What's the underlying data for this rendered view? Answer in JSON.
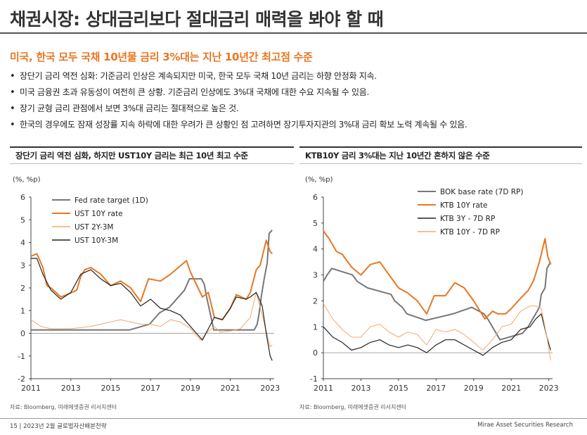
{
  "header": {
    "title": "채권시장: 상대금리보다 절대금리 매력을 봐야 할 때",
    "subtitle": "미국, 한국 모두 국채 10년물 금리 3%대는 지난 10년간 최고점 수준"
  },
  "bullets": [
    "장단기 금리 역전 심화: 기준금리 인상은 계속되지만 미국, 한국 모두 국채 10년 금리는 하향 안정화 지속.",
    "미국 금융권 초과 유동성이 여전히 큰 상황. 기준금리 인상에도 3%대 국채에 대한 수요 지속될 수 있음.",
    "장기 균형 금리 관점에서 보면 3%대 금리는 절대적으로 높은 것.",
    "한국의 경우에도 잠재 성장률 지속 하락에 대한 우려가 큰 상황인 점 고려하면 장기투자지관의 3%대 금리 확보 노력 계속될 수 있음."
  ],
  "colors": {
    "accent": "#e87722",
    "light_orange": "#f4a86a",
    "dark": "#222222",
    "gray": "#777777"
  },
  "chart_data": [
    {
      "type": "line",
      "title": "장단기 금리 역전 심화, 하지만 UST10Y 금리는 최근 10년 최고 수준",
      "ylabel": "(%, %p)",
      "ylim": [
        -2,
        6
      ],
      "yticks": [
        6,
        5,
        4,
        3,
        2,
        1,
        0,
        -1,
        -2
      ],
      "xlim": [
        2011,
        2023.2
      ],
      "xticks": [
        2011,
        2013,
        2015,
        2017,
        2019,
        2021,
        2023
      ],
      "legend_position": "top-left",
      "source": "자료: Bloomberg, 미래에셋증권 리서치센터",
      "series": [
        {
          "name": "Fed rate target (1D)",
          "color": "#777777",
          "width": 2,
          "x": [
            2011,
            2015.95,
            2016.95,
            2017.2,
            2017.45,
            2017.95,
            2018.2,
            2018.45,
            2018.7,
            2018.95,
            2019.55,
            2019.7,
            2019.8,
            2020.17,
            2022.2,
            2022.35,
            2022.45,
            2022.55,
            2022.7,
            2022.85,
            2022.95,
            2023.1
          ],
          "y": [
            0.15,
            0.15,
            0.4,
            0.65,
            0.9,
            1.15,
            1.4,
            1.65,
            1.9,
            2.4,
            2.4,
            2.15,
            1.65,
            0.15,
            0.15,
            0.4,
            0.9,
            1.6,
            2.4,
            3.1,
            4.4,
            4.55
          ]
        },
        {
          "name": "UST 10Y rate",
          "color": "#e87722",
          "width": 2,
          "x": [
            2011,
            2011.3,
            2011.6,
            2011.8,
            2012,
            2012.5,
            2012.8,
            2013.3,
            2013.5,
            2013.7,
            2014,
            2014.5,
            2015,
            2015.5,
            2016,
            2016.5,
            2016.9,
            2017.5,
            2018,
            2018.8,
            2019,
            2019.6,
            2019.9,
            2020.2,
            2020.6,
            2021,
            2021.3,
            2021.8,
            2022,
            2022.3,
            2022.5,
            2022.8,
            2023,
            2023.1
          ],
          "y": [
            3.4,
            3.5,
            2.9,
            2.1,
            2.0,
            1.6,
            1.7,
            1.9,
            2.5,
            2.8,
            2.9,
            2.6,
            2.1,
            2.3,
            2.0,
            1.4,
            2.4,
            2.3,
            2.6,
            3.2,
            2.7,
            1.6,
            1.8,
            0.7,
            0.6,
            1.1,
            1.7,
            1.5,
            1.8,
            2.8,
            3.0,
            4.1,
            3.6,
            3.5
          ]
        },
        {
          "name": "UST 2Y-3M",
          "color": "#f4a86a",
          "width": 1,
          "x": [
            2011,
            2011.5,
            2012,
            2013,
            2014,
            2015,
            2015.5,
            2016,
            2016.5,
            2017,
            2017.5,
            2018,
            2018.5,
            2019,
            2019.5,
            2019.8,
            2020.2,
            2020.5,
            2021,
            2021.5,
            2022,
            2022.3,
            2022.6,
            2022.8,
            2023,
            2023.1
          ],
          "y": [
            0.6,
            0.3,
            0.2,
            0.2,
            0.3,
            0.5,
            0.6,
            0.5,
            0.4,
            0.4,
            0.3,
            0.6,
            0.5,
            0.2,
            -0.3,
            0.0,
            0.3,
            0.05,
            0.1,
            0.2,
            0.7,
            1.8,
            0.8,
            0.1,
            -0.6,
            -0.5
          ]
        },
        {
          "name": "UST 10Y-3M",
          "color": "#222222",
          "width": 1.2,
          "x": [
            2011,
            2011.3,
            2011.6,
            2012,
            2012.5,
            2013,
            2013.5,
            2014,
            2014.5,
            2015,
            2015.5,
            2016,
            2016.5,
            2017,
            2017.5,
            2018,
            2018.5,
            2019,
            2019.3,
            2019.6,
            2019.9,
            2020.2,
            2020.6,
            2021,
            2021.3,
            2021.8,
            2022,
            2022.3,
            2022.6,
            2022.8,
            2023,
            2023.1
          ],
          "y": [
            3.3,
            3.3,
            2.6,
            1.9,
            1.5,
            1.8,
            2.6,
            2.8,
            2.4,
            2.1,
            2.2,
            1.8,
            1.2,
            1.5,
            1.1,
            1.0,
            0.8,
            0.3,
            0.0,
            -0.3,
            0.2,
            0.7,
            0.6,
            1.1,
            1.6,
            1.5,
            1.6,
            1.8,
            1.2,
            0.0,
            -1.0,
            -1.2
          ]
        }
      ]
    },
    {
      "type": "line",
      "title": "KTB10Y 금리 3%대는 지난 10년간 흔하지 않은 수준",
      "ylabel": "(%, %p)",
      "ylim": [
        -1,
        6
      ],
      "yticks": [
        6,
        5,
        4,
        3,
        2,
        1,
        0,
        -1
      ],
      "xlim": [
        2011,
        2023.2
      ],
      "xticks": [
        2011,
        2013,
        2015,
        2017,
        2019,
        2021,
        2023
      ],
      "legend_position": "top-right",
      "source": "자료: Bloomberg, 미래에셋증권 리서치센터",
      "series": [
        {
          "name": "BOK base rate (7D RP)",
          "color": "#777777",
          "width": 2,
          "x": [
            2011,
            2011.2,
            2011.45,
            2012.55,
            2012.8,
            2013.35,
            2014.6,
            2014.8,
            2015.2,
            2015.45,
            2016.45,
            2017.9,
            2018.9,
            2019.55,
            2019.8,
            2020.2,
            2020.4,
            2021.6,
            2021.9,
            2022.1,
            2022.3,
            2022.5,
            2022.6,
            2022.8,
            2022.9,
            2023.1
          ],
          "y": [
            2.75,
            3.0,
            3.25,
            3.0,
            2.75,
            2.5,
            2.25,
            2.0,
            1.75,
            1.5,
            1.25,
            1.5,
            1.75,
            1.5,
            1.25,
            0.75,
            0.5,
            0.75,
            1.0,
            1.25,
            1.5,
            1.75,
            2.25,
            2.5,
            3.25,
            3.5
          ]
        },
        {
          "name": "KTB 10Y rate",
          "color": "#e87722",
          "width": 2,
          "x": [
            2011,
            2011.3,
            2011.7,
            2012,
            2012.5,
            2013,
            2013.5,
            2014,
            2014.5,
            2015,
            2015.5,
            2016,
            2016.5,
            2016.9,
            2017.5,
            2018,
            2018.5,
            2019,
            2019.6,
            2020,
            2020.3,
            2020.7,
            2021,
            2021.5,
            2021.9,
            2022.2,
            2022.5,
            2022.8,
            2022.95,
            2023.1
          ],
          "y": [
            4.7,
            4.4,
            3.9,
            3.8,
            3.3,
            3.0,
            3.4,
            3.5,
            3.0,
            2.5,
            2.3,
            2.0,
            1.5,
            2.2,
            2.2,
            2.7,
            2.5,
            2.0,
            1.3,
            1.6,
            1.5,
            1.5,
            1.7,
            2.1,
            2.4,
            2.8,
            3.5,
            4.4,
            3.7,
            3.4
          ]
        },
        {
          "name": "KTB 3Y - 7D RP",
          "color": "#222222",
          "width": 1.2,
          "x": [
            2011,
            2011.5,
            2012,
            2012.5,
            2013,
            2013.5,
            2014,
            2014.5,
            2015,
            2015.5,
            2016,
            2016.5,
            2017,
            2017.5,
            2018,
            2018.5,
            2019,
            2019.5,
            2020,
            2020.5,
            2021,
            2021.5,
            2022,
            2022.3,
            2022.6,
            2022.9,
            2023.1
          ],
          "y": [
            1.0,
            0.6,
            0.4,
            0.1,
            0.2,
            0.4,
            0.5,
            0.3,
            0.2,
            0.3,
            0.2,
            0.0,
            0.3,
            0.5,
            0.5,
            0.3,
            0.1,
            -0.1,
            0.2,
            0.4,
            0.5,
            0.9,
            1.0,
            1.3,
            1.5,
            0.6,
            0.1
          ]
        },
        {
          "name": "KTB 10Y - 7D RP",
          "color": "#f4a86a",
          "width": 1,
          "x": [
            2011,
            2011.5,
            2012,
            2012.5,
            2013,
            2013.5,
            2014,
            2014.5,
            2015,
            2015.5,
            2016,
            2016.5,
            2017,
            2017.5,
            2018,
            2018.5,
            2019,
            2019.5,
            2020,
            2020.5,
            2021,
            2021.5,
            2022,
            2022.3,
            2022.6,
            2022.9,
            2023.1
          ],
          "y": [
            1.9,
            1.3,
            0.9,
            0.6,
            0.6,
            1.0,
            1.1,
            0.8,
            0.6,
            0.8,
            0.7,
            0.3,
            0.9,
            0.8,
            0.9,
            0.7,
            0.4,
            0.1,
            0.5,
            1.0,
            1.1,
            1.6,
            1.8,
            1.8,
            1.7,
            0.6,
            -0.3
          ]
        }
      ]
    }
  ],
  "footer": {
    "left": "15 | 2023년 2월 글로벌자산배분전략",
    "right": "Mirae Asset Securities Research"
  }
}
